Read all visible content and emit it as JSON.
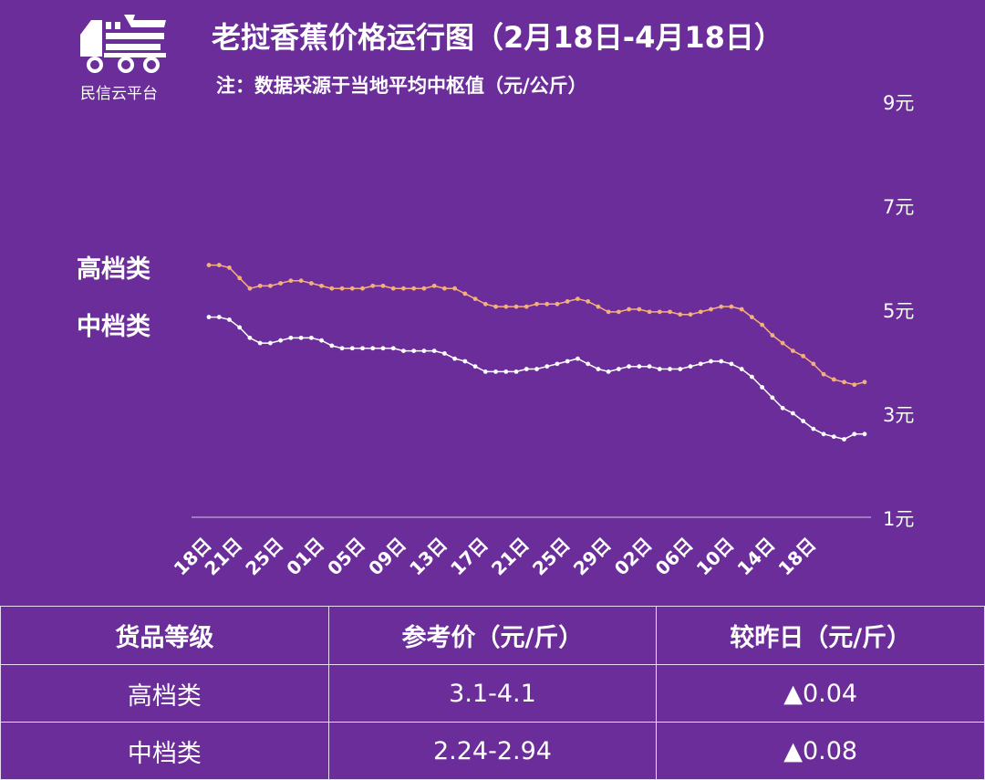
{
  "header": {
    "logo_text": "民信云平台",
    "title": "老挝香蕉价格运行图（2月18日-4月18日）",
    "note": "注：数据采源于当地平均中枢值（元/公斤）"
  },
  "colors": {
    "background": "#6a2d9a",
    "high_series": "#f5b07a",
    "mid_series": "#ffffff",
    "change_up": "#f07ab8"
  },
  "chart_data": {
    "type": "line",
    "title": "老挝香蕉价格运行图（2月18日-4月18日）",
    "ylabel": "",
    "xlabel": "",
    "ylim": [
      1,
      9
    ],
    "y_ticks": [
      "1元",
      "3元",
      "5元",
      "7元",
      "9元"
    ],
    "y_tick_values": [
      1,
      3,
      5,
      7,
      9
    ],
    "x_tick_labels": [
      "18日",
      "21日",
      "25日",
      "01日",
      "05日",
      "09日",
      "13日",
      "17日",
      "21日",
      "25日",
      "29日",
      "02日",
      "06日",
      "10日",
      "14日",
      "18日"
    ],
    "x_tick_index": [
      0,
      3,
      7,
      11,
      15,
      19,
      23,
      27,
      31,
      35,
      39,
      43,
      47,
      51,
      55,
      59
    ],
    "series": [
      {
        "name": "高档类",
        "values": [
          5.85,
          5.85,
          5.8,
          5.6,
          5.4,
          5.45,
          5.45,
          5.5,
          5.55,
          5.55,
          5.5,
          5.45,
          5.4,
          5.4,
          5.4,
          5.4,
          5.45,
          5.45,
          5.4,
          5.4,
          5.4,
          5.4,
          5.45,
          5.4,
          5.4,
          5.3,
          5.2,
          5.1,
          5.05,
          5.05,
          5.05,
          5.05,
          5.1,
          5.1,
          5.1,
          5.15,
          5.2,
          5.15,
          5.05,
          4.95,
          4.95,
          5.0,
          5.0,
          4.95,
          4.95,
          4.95,
          4.9,
          4.9,
          4.95,
          5.0,
          5.05,
          5.05,
          5.0,
          4.85,
          4.7,
          4.5,
          4.35,
          4.2,
          4.1,
          3.95,
          3.75,
          3.65,
          3.6,
          3.55,
          3.6
        ]
      },
      {
        "name": "中档类",
        "values": [
          4.85,
          4.85,
          4.8,
          4.65,
          4.45,
          4.35,
          4.35,
          4.4,
          4.45,
          4.45,
          4.45,
          4.4,
          4.3,
          4.25,
          4.25,
          4.25,
          4.25,
          4.25,
          4.25,
          4.2,
          4.2,
          4.2,
          4.2,
          4.15,
          4.05,
          4.0,
          3.9,
          3.8,
          3.8,
          3.8,
          3.8,
          3.85,
          3.85,
          3.9,
          3.95,
          4.0,
          4.05,
          3.95,
          3.85,
          3.8,
          3.85,
          3.9,
          3.9,
          3.9,
          3.85,
          3.85,
          3.85,
          3.9,
          3.95,
          4.0,
          4.0,
          3.95,
          3.85,
          3.7,
          3.5,
          3.3,
          3.1,
          3.0,
          2.85,
          2.7,
          2.6,
          2.55,
          2.5,
          2.6,
          2.6
        ]
      }
    ]
  },
  "series_labels": {
    "high": "高档类",
    "mid": "中档类"
  },
  "table": {
    "headers": [
      "货品等级",
      "参考价（元/斤）",
      "较昨日（元/斤）"
    ],
    "rows": [
      {
        "grade": "高档类",
        "price": "3.1-4.1",
        "change": "▲0.04"
      },
      {
        "grade": "中档类",
        "price": "2.24-2.94",
        "change": "▲0.08"
      }
    ]
  }
}
